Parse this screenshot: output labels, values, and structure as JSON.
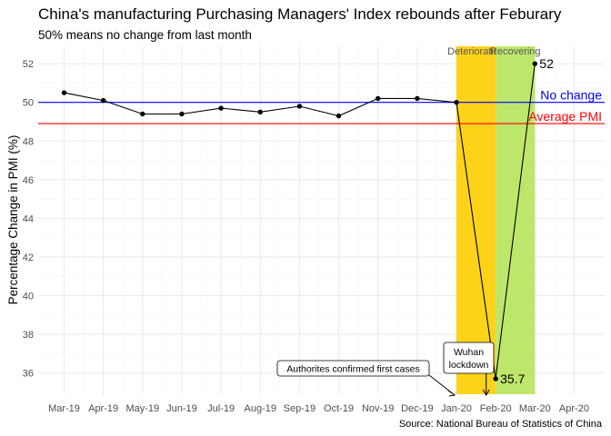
{
  "chart_data": {
    "type": "line",
    "title": "China's manufacturing Purchasing Managers' Index rebounds after Feburary",
    "subtitle": "50% means no change from last month",
    "ylabel": "Percentage Change in PMI (%)",
    "xlabel": "",
    "caption": "Source: National Bureau of Statistics of China",
    "x_tick_labels": [
      "Mar-19",
      "Apr-19",
      "May-19",
      "Jun-19",
      "Jul-19",
      "Aug-19",
      "Sep-19",
      "Oct-19",
      "Nov-19",
      "Dec-19",
      "Jan-20",
      "Feb-20",
      "Mar-20",
      "Apr-20"
    ],
    "y_ticks": [
      36,
      38,
      40,
      42,
      44,
      46,
      48,
      50,
      52
    ],
    "ylim": [
      34.9,
      52.9
    ],
    "grid": true,
    "series": [
      {
        "x": [
          "2019-03",
          "2019-04",
          "2019-05",
          "2019-06",
          "2019-07",
          "2019-08",
          "2019-09",
          "2019-10",
          "2019-11",
          "2019-12",
          "2020-01",
          "2020-02",
          "2020-03"
        ],
        "values": [
          50.5,
          50.1,
          49.4,
          49.4,
          49.7,
          49.5,
          49.8,
          49.3,
          50.2,
          50.2,
          50.0,
          35.7,
          52.0
        ]
      }
    ],
    "point_labels": [
      {
        "x": "2020-02",
        "y": 35.7,
        "text": "35.7"
      },
      {
        "x": "2020-03",
        "y": 52.0,
        "text": "52"
      }
    ],
    "reference_lines": [
      {
        "y": 50.0,
        "label": "No change",
        "color": "#0000ff"
      },
      {
        "y": 48.9,
        "label": "Average PMI",
        "color": "#ff0000"
      }
    ],
    "shaded_regions": [
      {
        "x_start": "2020-01",
        "x_end": "2020-02",
        "label": "Deteriorating",
        "color": "#fdd31a"
      },
      {
        "x_start": "2020-02",
        "x_end": "2020-03",
        "label": "Recovering",
        "color": "#bde76b"
      }
    ],
    "annotations": [
      {
        "text": "Authorites confirmed first cases",
        "target_x": "2020-01"
      },
      {
        "text": "Wuhan lockdown",
        "target_x": "2020-01-23"
      }
    ]
  }
}
